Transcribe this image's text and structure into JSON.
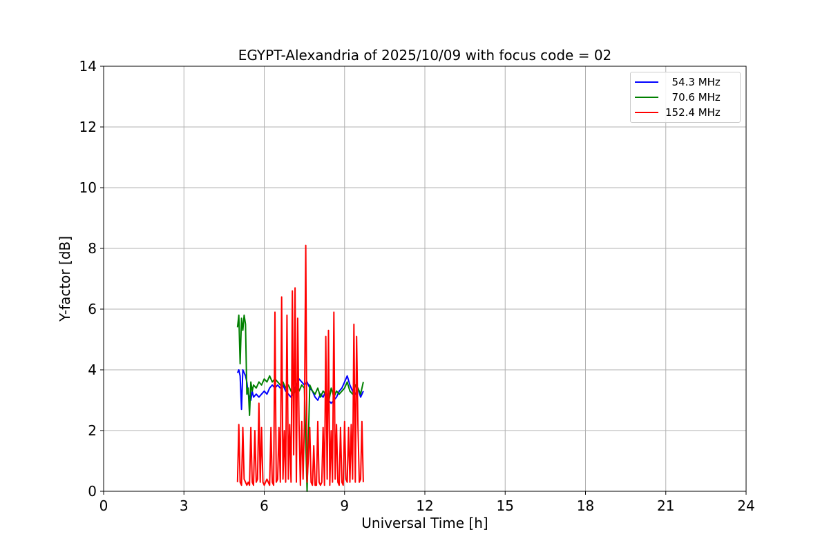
{
  "chart_data": {
    "type": "line",
    "title": "EGYPT-Alexandria of 2025/10/09 with focus code = 02",
    "xlabel": "Universal Time [h]",
    "ylabel": "Y-factor [dB]",
    "xlim": [
      0,
      24
    ],
    "ylim": [
      0,
      14
    ],
    "xticks": [
      "0",
      "3",
      "6",
      "9",
      "12",
      "15",
      "18",
      "21",
      "24"
    ],
    "yticks": [
      "0",
      "2",
      "4",
      "6",
      "8",
      "10",
      "12",
      "14"
    ],
    "grid": true,
    "legend_position": "top-right",
    "series": [
      {
        "name": "  54.3 MHz",
        "color": "#0000ff",
        "x": [
          5.0,
          5.05,
          5.1,
          5.15,
          5.2,
          5.25,
          5.3,
          5.35,
          5.4,
          5.45,
          5.5,
          5.55,
          5.6,
          5.7,
          5.8,
          5.9,
          6.0,
          6.1,
          6.2,
          6.3,
          6.4,
          6.5,
          6.6,
          6.7,
          6.8,
          6.9,
          7.0,
          7.1,
          7.2,
          7.3,
          7.4,
          7.5,
          7.6,
          7.7,
          7.8,
          7.9,
          8.0,
          8.1,
          8.2,
          8.3,
          8.4,
          8.5,
          8.6,
          8.7,
          8.8,
          8.9,
          9.0,
          9.1,
          9.2,
          9.3,
          9.4,
          9.5,
          9.6,
          9.7
        ],
        "y": [
          3.9,
          4.0,
          3.8,
          2.7,
          4.0,
          3.9,
          3.8,
          3.6,
          3.2,
          3.1,
          3.0,
          3.3,
          3.1,
          3.2,
          3.1,
          3.2,
          3.3,
          3.2,
          3.4,
          3.5,
          3.4,
          3.5,
          3.4,
          3.5,
          3.3,
          3.2,
          3.1,
          3.3,
          3.5,
          3.7,
          3.6,
          3.5,
          3.6,
          3.4,
          3.3,
          3.1,
          3.0,
          3.2,
          3.1,
          3.3,
          3.0,
          2.9,
          3.0,
          3.1,
          3.3,
          3.4,
          3.6,
          3.8,
          3.5,
          3.3,
          3.2,
          3.4,
          3.1,
          3.3
        ]
      },
      {
        "name": "  70.6 MHz",
        "color": "#008000",
        "x": [
          5.0,
          5.05,
          5.1,
          5.15,
          5.2,
          5.25,
          5.3,
          5.35,
          5.4,
          5.45,
          5.5,
          5.55,
          5.6,
          5.7,
          5.8,
          5.9,
          6.0,
          6.1,
          6.2,
          6.3,
          6.4,
          6.5,
          6.6,
          6.7,
          6.8,
          6.9,
          7.0,
          7.1,
          7.2,
          7.3,
          7.4,
          7.5,
          7.6,
          7.7,
          7.8,
          7.9,
          8.0,
          8.1,
          8.2,
          8.3,
          8.4,
          8.5,
          8.6,
          8.7,
          8.8,
          8.9,
          9.0,
          9.1,
          9.2,
          9.3,
          9.4,
          9.5,
          9.6,
          9.7
        ],
        "y": [
          5.4,
          5.8,
          4.2,
          5.7,
          5.3,
          5.8,
          5.5,
          3.2,
          3.4,
          2.5,
          3.6,
          3.3,
          3.5,
          3.4,
          3.6,
          3.5,
          3.7,
          3.6,
          3.8,
          3.6,
          3.7,
          3.6,
          3.5,
          3.6,
          3.4,
          3.5,
          3.3,
          3.2,
          3.4,
          3.3,
          3.5,
          3.4,
          0.0,
          3.5,
          3.3,
          3.2,
          3.4,
          3.1,
          3.3,
          3.2,
          2.9,
          3.4,
          3.1,
          3.3,
          3.2,
          3.3,
          3.4,
          3.6,
          3.3,
          3.2,
          3.5,
          3.4,
          3.2,
          3.6
        ]
      },
      {
        "name": "152.4 MHz",
        "color": "#ff0000",
        "x": [
          5.0,
          5.05,
          5.1,
          5.15,
          5.2,
          5.25,
          5.3,
          5.35,
          5.4,
          5.45,
          5.5,
          5.55,
          5.6,
          5.65,
          5.7,
          5.75,
          5.8,
          5.85,
          5.9,
          5.95,
          6.0,
          6.05,
          6.1,
          6.15,
          6.2,
          6.25,
          6.3,
          6.35,
          6.4,
          6.45,
          6.5,
          6.55,
          6.6,
          6.65,
          6.7,
          6.75,
          6.8,
          6.85,
          6.9,
          6.95,
          7.0,
          7.05,
          7.1,
          7.15,
          7.2,
          7.25,
          7.3,
          7.35,
          7.4,
          7.45,
          7.5,
          7.55,
          7.6,
          7.65,
          7.7,
          7.75,
          7.8,
          7.85,
          7.9,
          7.95,
          8.0,
          8.05,
          8.1,
          8.15,
          8.2,
          8.25,
          8.3,
          8.35,
          8.4,
          8.45,
          8.5,
          8.55,
          8.6,
          8.65,
          8.7,
          8.75,
          8.8,
          8.85,
          8.9,
          8.95,
          9.0,
          9.05,
          9.1,
          9.15,
          9.2,
          9.25,
          9.3,
          9.35,
          9.4,
          9.45,
          9.5,
          9.55,
          9.6,
          9.65,
          9.7
        ],
        "y": [
          0.3,
          2.2,
          0.3,
          0.2,
          2.1,
          0.4,
          0.3,
          0.2,
          0.3,
          0.2,
          2.1,
          0.3,
          0.2,
          2.0,
          0.3,
          0.4,
          2.9,
          0.3,
          2.1,
          0.3,
          0.2,
          0.3,
          0.4,
          0.3,
          0.2,
          2.1,
          0.3,
          0.2,
          5.9,
          0.3,
          0.4,
          2.1,
          0.3,
          6.4,
          0.4,
          2.0,
          0.3,
          5.8,
          0.4,
          2.2,
          0.3,
          6.6,
          1.2,
          6.7,
          0.3,
          5.7,
          2.2,
          0.2,
          2.3,
          0.4,
          2.2,
          8.1,
          0.3,
          1.1,
          2.1,
          0.3,
          0.2,
          1.5,
          0.2,
          0.2,
          2.3,
          0.3,
          0.2,
          0.3,
          2.1,
          0.2,
          5.1,
          0.4,
          5.3,
          0.2,
          2.0,
          0.3,
          5.9,
          0.4,
          2.2,
          0.3,
          0.2,
          2.1,
          0.3,
          0.2,
          2.3,
          0.4,
          0.3,
          2.1,
          0.3,
          2.2,
          0.4,
          5.5,
          0.3,
          5.1,
          2.2,
          0.3,
          0.4,
          2.3,
          0.3
        ]
      }
    ]
  }
}
